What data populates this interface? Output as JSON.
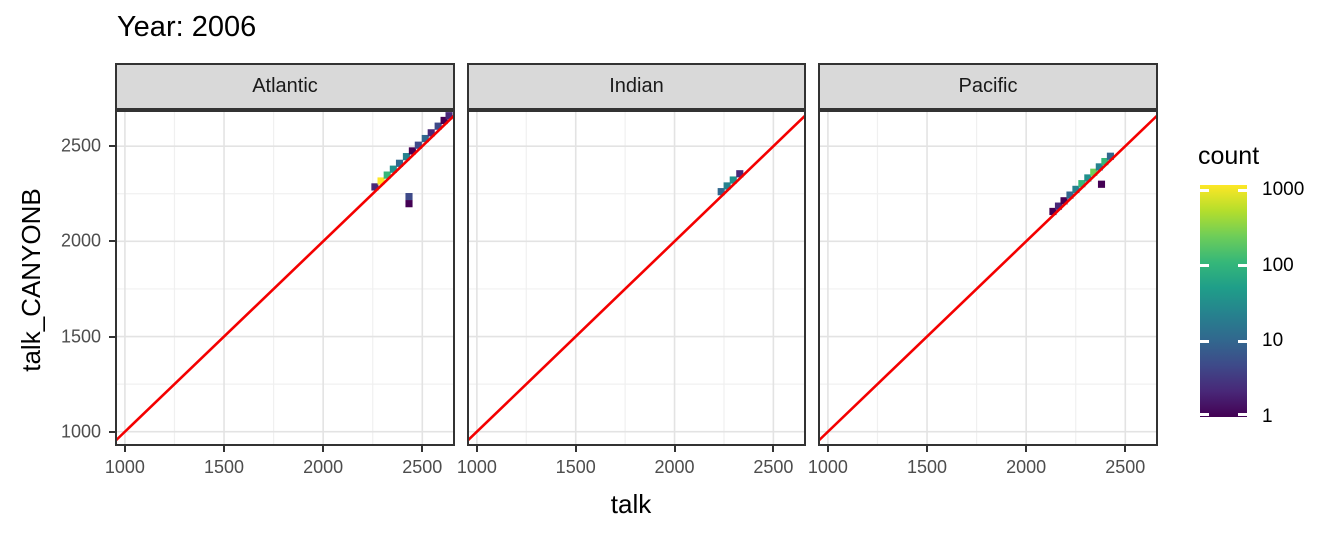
{
  "chart_data": {
    "type": "heatmap",
    "subtype": "bin2d-faceted-scatter",
    "title": "Year: 2006",
    "xlabel": "talk",
    "ylabel": "talk_CANYONB",
    "x_ticks": [
      1000,
      1500,
      2000,
      2500
    ],
    "y_ticks": [
      1000,
      1500,
      2000,
      2500
    ],
    "minor_x": [
      1250,
      1750,
      2250
    ],
    "minor_y": [
      1250,
      1750,
      2250
    ],
    "xlim": [
      950,
      2665
    ],
    "ylim": [
      925,
      2690
    ],
    "grid": "major+minor",
    "legend_position": "right",
    "reference_line": {
      "type": "abline",
      "slope": 1,
      "intercept": 0,
      "color": "#F40000"
    },
    "bin_size": {
      "x": 36,
      "y": 38
    },
    "facets": [
      {
        "label": "Atlantic",
        "bins": [
          {
            "x": 2261,
            "y": 2286,
            "c": "#482878"
          },
          {
            "x": 2292,
            "y": 2317,
            "c": "#FDE725"
          },
          {
            "x": 2323,
            "y": 2348,
            "c": "#35B779"
          },
          {
            "x": 2354,
            "y": 2379,
            "c": "#21918C"
          },
          {
            "x": 2385,
            "y": 2410,
            "c": "#31688E"
          },
          {
            "x": 2420,
            "y": 2445,
            "c": "#26828E"
          },
          {
            "x": 2450,
            "y": 2475,
            "c": "#440154"
          },
          {
            "x": 2480,
            "y": 2505,
            "c": "#3E4A89"
          },
          {
            "x": 2515,
            "y": 2540,
            "c": "#31688E"
          },
          {
            "x": 2545,
            "y": 2570,
            "c": "#482878"
          },
          {
            "x": 2580,
            "y": 2605,
            "c": "#3E4A89"
          },
          {
            "x": 2610,
            "y": 2635,
            "c": "#440154"
          },
          {
            "x": 2635,
            "y": 2660,
            "c": "#482878"
          },
          {
            "x": 2433,
            "y": 2235,
            "c": "#3E4A89"
          },
          {
            "x": 2433,
            "y": 2198,
            "c": "#440154"
          }
        ]
      },
      {
        "label": "Indian",
        "bins": [
          {
            "x": 2236,
            "y": 2261,
            "c": "#31688E"
          },
          {
            "x": 2266,
            "y": 2291,
            "c": "#26828E"
          },
          {
            "x": 2297,
            "y": 2322,
            "c": "#21918C"
          },
          {
            "x": 2330,
            "y": 2355,
            "c": "#482878"
          }
        ]
      },
      {
        "label": "Pacific",
        "bins": [
          {
            "x": 2135,
            "y": 2157,
            "c": "#440154"
          },
          {
            "x": 2163,
            "y": 2185,
            "c": "#482878"
          },
          {
            "x": 2191,
            "y": 2213,
            "c": "#440154"
          },
          {
            "x": 2221,
            "y": 2243,
            "c": "#31688E"
          },
          {
            "x": 2251,
            "y": 2273,
            "c": "#26828E"
          },
          {
            "x": 2281,
            "y": 2303,
            "c": "#35B779"
          },
          {
            "x": 2311,
            "y": 2333,
            "c": "#21918C"
          },
          {
            "x": 2341,
            "y": 2363,
            "c": "#6DCD59"
          },
          {
            "x": 2369,
            "y": 2391,
            "c": "#26828E"
          },
          {
            "x": 2397,
            "y": 2419,
            "c": "#35B779"
          },
          {
            "x": 2425,
            "y": 2447,
            "c": "#31688E"
          },
          {
            "x": 2380,
            "y": 2300,
            "c": "#440154"
          }
        ]
      }
    ],
    "legend": {
      "title": "count",
      "scale": "log10",
      "domain": [
        1,
        1170
      ],
      "ticks": [
        1000,
        100,
        10,
        1
      ],
      "viridis_stops": [
        "#440154",
        "#482878",
        "#3E4A89",
        "#31688E",
        "#26828E",
        "#1F9E89",
        "#35B779",
        "#6DCD59",
        "#B4DE2C",
        "#FDE725"
      ]
    },
    "colors": {
      "strip_bg": "#D9D9D9",
      "panel_border": "#333333",
      "grid_major": "#E3E3E3",
      "grid_minor": "#F0F0F0",
      "tick_text": "#4D4D4D",
      "abline": "#F40000"
    }
  }
}
